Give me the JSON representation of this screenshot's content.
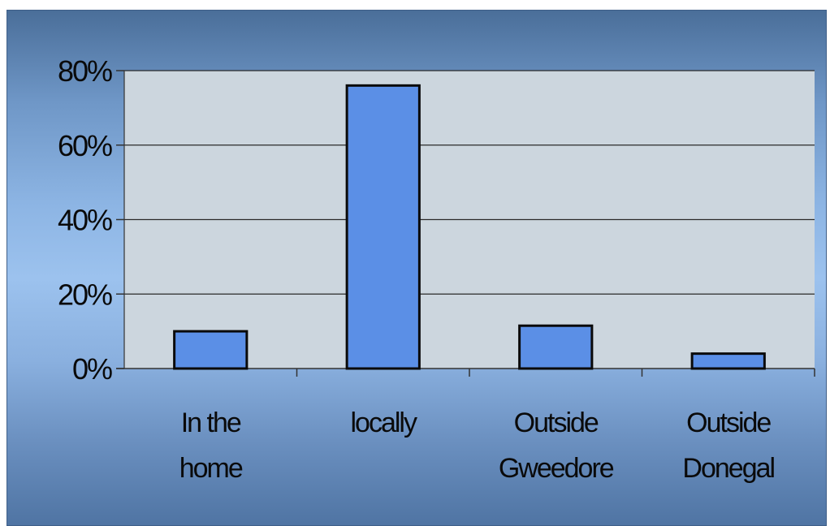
{
  "chart_data": {
    "type": "bar",
    "categories": [
      [
        "In the",
        "home"
      ],
      [
        "locally"
      ],
      [
        "Outside",
        "Gweedore"
      ],
      [
        "Outside",
        "Donegal"
      ]
    ],
    "values": [
      10,
      76,
      11.5,
      4
    ],
    "ylim": [
      0,
      80
    ],
    "yticks": [
      0,
      20,
      40,
      60,
      80
    ],
    "ytick_labels": [
      "0%",
      "20%",
      "40%",
      "60%",
      "80%"
    ],
    "title": "",
    "xlabel": "",
    "ylabel": "",
    "grid": true,
    "legend": "none",
    "colors": {
      "bar_fill": "#5b8fe6",
      "bar_stroke": "#0a0a0a",
      "plot_bg": "#ccd6de",
      "gridline": "#2a2a2a"
    }
  }
}
